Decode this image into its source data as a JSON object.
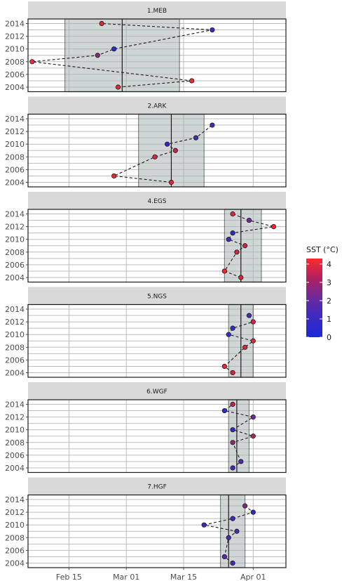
{
  "chart_data": {
    "type": "scatter",
    "x_axis": {
      "ticks": [
        "Feb 15",
        "Mar 01",
        "Mar 15",
        "Apr 01"
      ]
    },
    "y_axis": {
      "ticks": [
        "2004",
        "2006",
        "2008",
        "2010",
        "2012",
        "2014"
      ],
      "range": [
        2004,
        2014
      ]
    },
    "grid": true,
    "legend": {
      "title": "SST (°C)",
      "placement": "right",
      "ticks": [
        "0",
        "1",
        "2",
        "3",
        "4"
      ],
      "range": [
        0,
        4.3
      ],
      "colors": [
        "#1a2ad6",
        "#6a2a9a",
        "#e11d2e",
        "#ff2a2a"
      ]
    },
    "panels": [
      {
        "label": "1.MEB",
        "band": [
          "Feb 14",
          "Mar 14"
        ],
        "median": "Feb 28",
        "points": [
          {
            "date": "Feb 27",
            "year": 2004,
            "sst": 3.7
          },
          {
            "date": "Mar 17",
            "year": 2005,
            "sst": 4.0
          },
          {
            "date": "Feb 06",
            "year": 2008,
            "sst": 4.1
          },
          {
            "date": "Feb 22",
            "year": 2009,
            "sst": 2.4
          },
          {
            "date": "Feb 26",
            "year": 2010,
            "sst": 0.5
          },
          {
            "date": "Mar 22",
            "year": 2013,
            "sst": 1.0
          },
          {
            "date": "Feb 23",
            "year": 2014,
            "sst": 3.6
          }
        ]
      },
      {
        "label": "2.ARK",
        "band": [
          "Mar 04",
          "Mar 20"
        ],
        "median": "Mar 12",
        "points": [
          {
            "date": "Mar 12",
            "year": 2004,
            "sst": 3.6
          },
          {
            "date": "Feb 26",
            "year": 2005,
            "sst": 3.8
          },
          {
            "date": "Mar 08",
            "year": 2008,
            "sst": 3.5
          },
          {
            "date": "Mar 13",
            "year": 2009,
            "sst": 3.2
          },
          {
            "date": "Mar 11",
            "year": 2010,
            "sst": 0.6
          },
          {
            "date": "Mar 18",
            "year": 2011,
            "sst": 1.2
          },
          {
            "date": "Mar 22",
            "year": 2013,
            "sst": 1.3
          }
        ]
      },
      {
        "label": "4.EGS",
        "band": [
          "Mar 25",
          "Apr 03"
        ],
        "median": "Mar 29",
        "points": [
          {
            "date": "Mar 29",
            "year": 2004,
            "sst": 3.5
          },
          {
            "date": "Mar 25",
            "year": 2005,
            "sst": 3.9
          },
          {
            "date": "Mar 28",
            "year": 2008,
            "sst": 3.3
          },
          {
            "date": "Mar 30",
            "year": 2009,
            "sst": 3.3
          },
          {
            "date": "Mar 26",
            "year": 2010,
            "sst": 1.2
          },
          {
            "date": "Mar 27",
            "year": 2011,
            "sst": 0.8
          },
          {
            "date": "Apr 06",
            "year": 2012,
            "sst": 3.8
          },
          {
            "date": "Mar 31",
            "year": 2013,
            "sst": 2.0
          },
          {
            "date": "Mar 27",
            "year": 2014,
            "sst": 3.5
          }
        ]
      },
      {
        "label": "5.NGS",
        "band": [
          "Mar 26",
          "Apr 01"
        ],
        "median": "Mar 29",
        "points": [
          {
            "date": "Mar 27",
            "year": 2004,
            "sst": 3.4
          },
          {
            "date": "Mar 25",
            "year": 2005,
            "sst": 3.7
          },
          {
            "date": "Mar 30",
            "year": 2008,
            "sst": 3.5
          },
          {
            "date": "Apr 01",
            "year": 2009,
            "sst": 3.7
          },
          {
            "date": "Mar 26",
            "year": 2010,
            "sst": 1.0
          },
          {
            "date": "Mar 27",
            "year": 2011,
            "sst": 0.8
          },
          {
            "date": "Apr 01",
            "year": 2012,
            "sst": 3.3
          },
          {
            "date": "Mar 31",
            "year": 2013,
            "sst": 1.3
          }
        ]
      },
      {
        "label": "6.WGF",
        "band": [
          "Mar 26",
          "Mar 31"
        ],
        "median": "Mar 28",
        "points": [
          {
            "date": "Mar 27",
            "year": 2004,
            "sst": 1.2
          },
          {
            "date": "Mar 29",
            "year": 2005,
            "sst": 1.5
          },
          {
            "date": "Mar 27",
            "year": 2008,
            "sst": 2.4
          },
          {
            "date": "Apr 01",
            "year": 2009,
            "sst": 2.8
          },
          {
            "date": "Mar 27",
            "year": 2010,
            "sst": 0.6
          },
          {
            "date": "Apr 01",
            "year": 2012,
            "sst": 2.0
          },
          {
            "date": "Mar 25",
            "year": 2013,
            "sst": 0.5
          },
          {
            "date": "Mar 27",
            "year": 2014,
            "sst": 3.0
          }
        ]
      },
      {
        "label": "7.HGF",
        "band": [
          "Mar 24",
          "Mar 30"
        ],
        "median": "Mar 26",
        "points": [
          {
            "date": "Mar 27",
            "year": 2004,
            "sst": 1.2
          },
          {
            "date": "Mar 25",
            "year": 2005,
            "sst": 1.5
          },
          {
            "date": "Mar 26",
            "year": 2008,
            "sst": 1.4
          },
          {
            "date": "Mar 28",
            "year": 2009,
            "sst": 1.3
          },
          {
            "date": "Mar 20",
            "year": 2010,
            "sst": 0.9
          },
          {
            "date": "Mar 27",
            "year": 2011,
            "sst": 1.0
          },
          {
            "date": "Apr 01",
            "year": 2012,
            "sst": 0.7
          },
          {
            "date": "Mar 30",
            "year": 2013,
            "sst": 2.3
          }
        ]
      }
    ]
  }
}
